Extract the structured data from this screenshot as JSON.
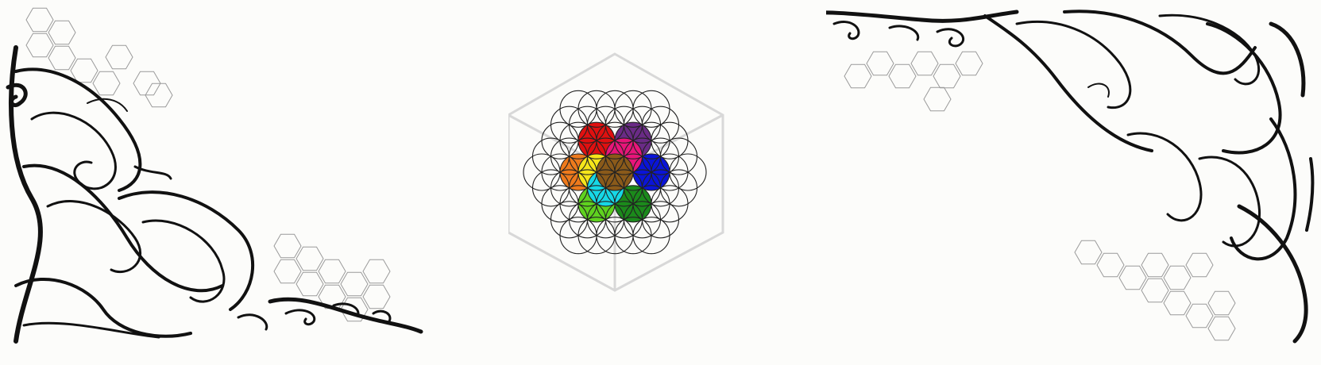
{
  "colors": {
    "background": "#fcfcfa",
    "ink": "#111111",
    "hex_outline": "#9a9a9a",
    "cube_outline": "#d8d8d8",
    "circle_outline": "#222222"
  },
  "icons": {
    "left_ornament": "baroque-scroll-corner-ornament-icon",
    "right_ornament": "baroque-scroll-corner-ornament-icon",
    "center": "flower-of-life-cube-icon"
  },
  "flower": {
    "chakra_circles": [
      {
        "name": "red",
        "color": "#e01010"
      },
      {
        "name": "purple",
        "color": "#6a2b86"
      },
      {
        "name": "blue",
        "color": "#0a14d8"
      },
      {
        "name": "green",
        "color": "#1b8a1b"
      },
      {
        "name": "lime",
        "color": "#5fd21f"
      },
      {
        "name": "orange",
        "color": "#ee7a1c"
      },
      {
        "name": "yellow",
        "color": "#f5e51b"
      },
      {
        "name": "pink",
        "color": "#e8157a"
      },
      {
        "name": "cyan",
        "color": "#16d8e6"
      },
      {
        "name": "brown",
        "color": "#8a5a1a"
      }
    ]
  }
}
